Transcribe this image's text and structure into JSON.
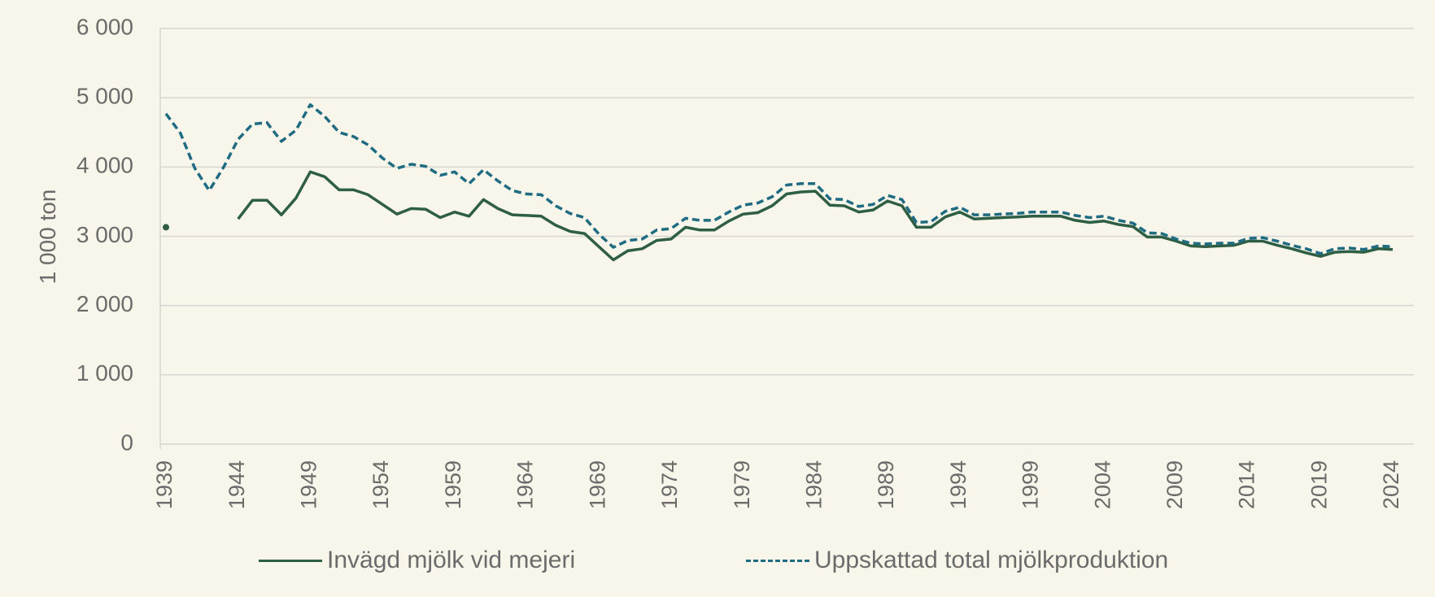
{
  "chart_data": {
    "type": "line",
    "title": "",
    "xlabel": "",
    "ylabel": "1 000 ton",
    "ylim": [
      0,
      6000
    ],
    "xlim": [
      1939,
      2024
    ],
    "y_ticks": [
      "0",
      "1 000",
      "2 000",
      "3 000",
      "4 000",
      "5 000",
      "6 000"
    ],
    "y_tick_values": [
      0,
      1000,
      2000,
      3000,
      4000,
      5000,
      6000
    ],
    "x_ticks": [
      "1939",
      "1944",
      "1949",
      "1954",
      "1959",
      "1964",
      "1969",
      "1974",
      "1979",
      "1984",
      "1989",
      "1994",
      "1999",
      "2004",
      "2009",
      "2014",
      "2019",
      "2024"
    ],
    "x_tick_values": [
      1939,
      1944,
      1949,
      1954,
      1959,
      1964,
      1969,
      1974,
      1979,
      1984,
      1989,
      1994,
      1999,
      2004,
      2009,
      2014,
      2019,
      2024
    ],
    "grid": true,
    "legend_position": "bottom",
    "series": [
      {
        "name": "Invägd mjölk vid mejeri",
        "color": "#2e5e44",
        "style": "solid",
        "x": [
          1939,
          1944,
          1945,
          1946,
          1947,
          1948,
          1949,
          1950,
          1951,
          1952,
          1953,
          1954,
          1955,
          1956,
          1957,
          1958,
          1959,
          1960,
          1961,
          1962,
          1963,
          1964,
          1965,
          1966,
          1967,
          1968,
          1969,
          1970,
          1971,
          1972,
          1973,
          1974,
          1975,
          1976,
          1977,
          1978,
          1979,
          1980,
          1981,
          1982,
          1983,
          1984,
          1985,
          1986,
          1987,
          1988,
          1989,
          1990,
          1991,
          1992,
          1993,
          1994,
          1995,
          1996,
          1997,
          1998,
          1999,
          2000,
          2001,
          2002,
          2003,
          2004,
          2005,
          2006,
          2007,
          2008,
          2009,
          2010,
          2011,
          2012,
          2013,
          2014,
          2015,
          2016,
          2017,
          2018,
          2019,
          2020,
          2021,
          2022,
          2023,
          2024
        ],
        "values": [
          3130,
          3250,
          3520,
          3520,
          3310,
          3550,
          3930,
          3860,
          3670,
          3670,
          3600,
          3460,
          3320,
          3400,
          3390,
          3270,
          3350,
          3290,
          3530,
          3400,
          3310,
          3300,
          3290,
          3160,
          3070,
          3040,
          2850,
          2660,
          2790,
          2820,
          2940,
          2960,
          3130,
          3090,
          3090,
          3220,
          3320,
          3340,
          3440,
          3610,
          3640,
          3650,
          3450,
          3440,
          3350,
          3380,
          3510,
          3440,
          3130,
          3130,
          3280,
          3350,
          3250,
          3260,
          3270,
          3280,
          3290,
          3290,
          3290,
          3230,
          3200,
          3220,
          3170,
          3140,
          2990,
          2990,
          2930,
          2860,
          2850,
          2860,
          2870,
          2930,
          2930,
          2870,
          2820,
          2760,
          2710,
          2770,
          2780,
          2770,
          2820,
          2810
        ]
      },
      {
        "name": "Uppskattad total mjölkproduktion",
        "color": "#1e6b82",
        "style": "dashed",
        "x": [
          1939,
          1940,
          1941,
          1942,
          1943,
          1944,
          1945,
          1946,
          1947,
          1948,
          1949,
          1950,
          1951,
          1952,
          1953,
          1954,
          1955,
          1956,
          1957,
          1958,
          1959,
          1960,
          1961,
          1962,
          1963,
          1964,
          1965,
          1966,
          1967,
          1968,
          1969,
          1970,
          1971,
          1972,
          1973,
          1974,
          1975,
          1976,
          1977,
          1978,
          1979,
          1980,
          1981,
          1982,
          1983,
          1984,
          1985,
          1986,
          1987,
          1988,
          1989,
          1990,
          1991,
          1992,
          1993,
          1994,
          1995,
          1996,
          1997,
          1998,
          1999,
          2000,
          2001,
          2002,
          2003,
          2004,
          2005,
          2006,
          2007,
          2008,
          2009,
          2010,
          2011,
          2012,
          2013,
          2014,
          2015,
          2016,
          2017,
          2018,
          2019,
          2020,
          2021,
          2022,
          2023,
          2024
        ],
        "values": [
          4770,
          4490,
          3980,
          3660,
          4000,
          4400,
          4620,
          4640,
          4370,
          4530,
          4900,
          4730,
          4500,
          4440,
          4320,
          4130,
          3980,
          4040,
          4010,
          3880,
          3930,
          3760,
          3960,
          3800,
          3660,
          3610,
          3600,
          3440,
          3330,
          3270,
          3030,
          2840,
          2940,
          2960,
          3090,
          3110,
          3260,
          3230,
          3230,
          3350,
          3450,
          3480,
          3570,
          3740,
          3760,
          3760,
          3540,
          3530,
          3430,
          3460,
          3590,
          3530,
          3200,
          3210,
          3360,
          3420,
          3310,
          3310,
          3320,
          3330,
          3350,
          3350,
          3350,
          3300,
          3270,
          3290,
          3230,
          3190,
          3050,
          3040,
          2960,
          2900,
          2890,
          2900,
          2900,
          2970,
          2980,
          2930,
          2870,
          2820,
          2750,
          2820,
          2830,
          2810,
          2860,
          2850
        ]
      }
    ]
  }
}
